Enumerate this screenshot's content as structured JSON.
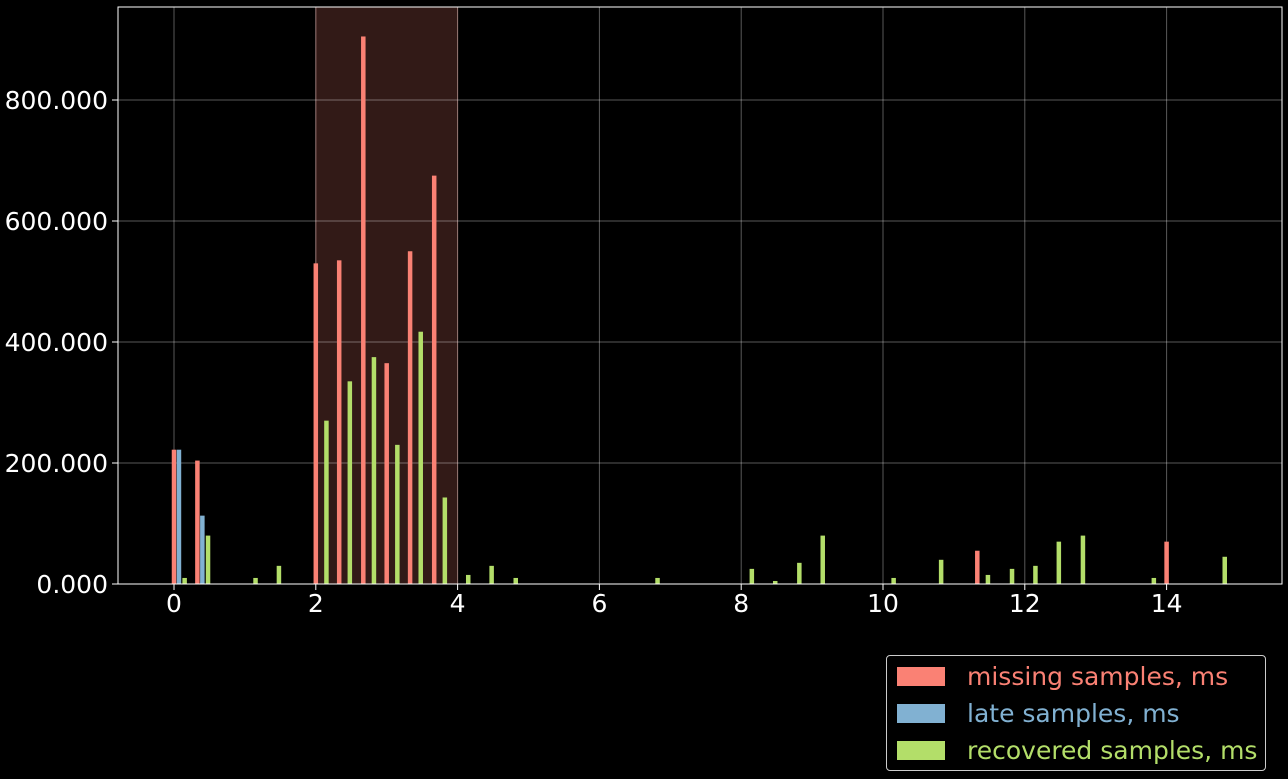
{
  "chart_data": {
    "type": "bar",
    "title": "",
    "xlabel": "",
    "ylabel": "",
    "xlim": [
      -0.8,
      15.55
    ],
    "ylim": [
      0,
      955
    ],
    "xticks": [
      0,
      2,
      4,
      6,
      8,
      10,
      12,
      14
    ],
    "xtick_labels": [
      "0",
      "2",
      "4",
      "6",
      "8",
      "10",
      "12",
      "14"
    ],
    "yticks": [
      0,
      200,
      400,
      600,
      800
    ],
    "ytick_labels": [
      "0.000",
      "200.000",
      "400.000",
      "600.000",
      "800.000"
    ],
    "grid": true,
    "legend_position": "below-right",
    "highlight_span": [
      2,
      4
    ],
    "series": [
      {
        "name": "missing samples, ms",
        "color": "#fa8174",
        "x": [
          0.0,
          0.33,
          2.0,
          2.33,
          2.67,
          3.0,
          3.33,
          3.67,
          11.33,
          14.0
        ],
        "values": [
          222,
          204,
          530,
          535,
          905,
          365,
          550,
          675,
          55,
          70
        ]
      },
      {
        "name": "late samples, ms",
        "color": "#81b1d2",
        "x": [
          0.07,
          0.4
        ],
        "values": [
          222,
          113
        ]
      },
      {
        "name": "recovered samples, ms",
        "color": "#b3de69",
        "x": [
          0.15,
          0.48,
          1.15,
          1.48,
          2.15,
          2.48,
          2.82,
          3.15,
          3.48,
          3.82,
          4.15,
          4.48,
          4.82,
          6.82,
          8.15,
          8.48,
          8.82,
          9.15,
          10.15,
          10.82,
          11.48,
          11.82,
          12.15,
          12.48,
          12.82,
          13.82,
          14.82
        ],
        "values": [
          10,
          80,
          10,
          30,
          270,
          335,
          375,
          230,
          417,
          143,
          15,
          30,
          10,
          10,
          25,
          5,
          35,
          80,
          10,
          40,
          15,
          25,
          30,
          70,
          80,
          10,
          45
        ]
      }
    ]
  }
}
